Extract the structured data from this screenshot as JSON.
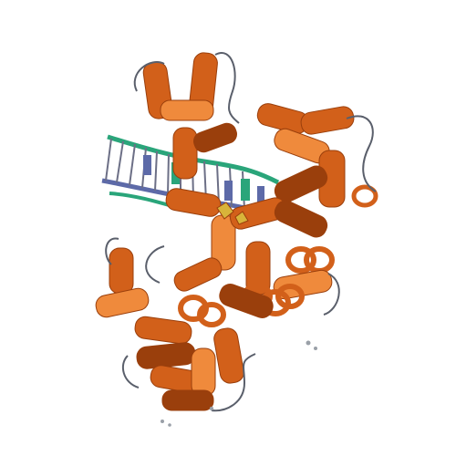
{
  "image": {
    "subject": "ribbon-cartoon",
    "background_color": "#ffffff",
    "palette": {
      "protein_helix": "#d2601a",
      "protein_helix_dark": "#9a3f0c",
      "protein_helix_light": "#ef8a3c",
      "protein_coil": "#5a5f6b",
      "dna_strand_a": "#2aa57a",
      "dna_strand_b": "#5d6aa8",
      "dna_base": "#6c6f86",
      "ligand": "#d8b43a",
      "ion": "#9aa0a8"
    }
  }
}
